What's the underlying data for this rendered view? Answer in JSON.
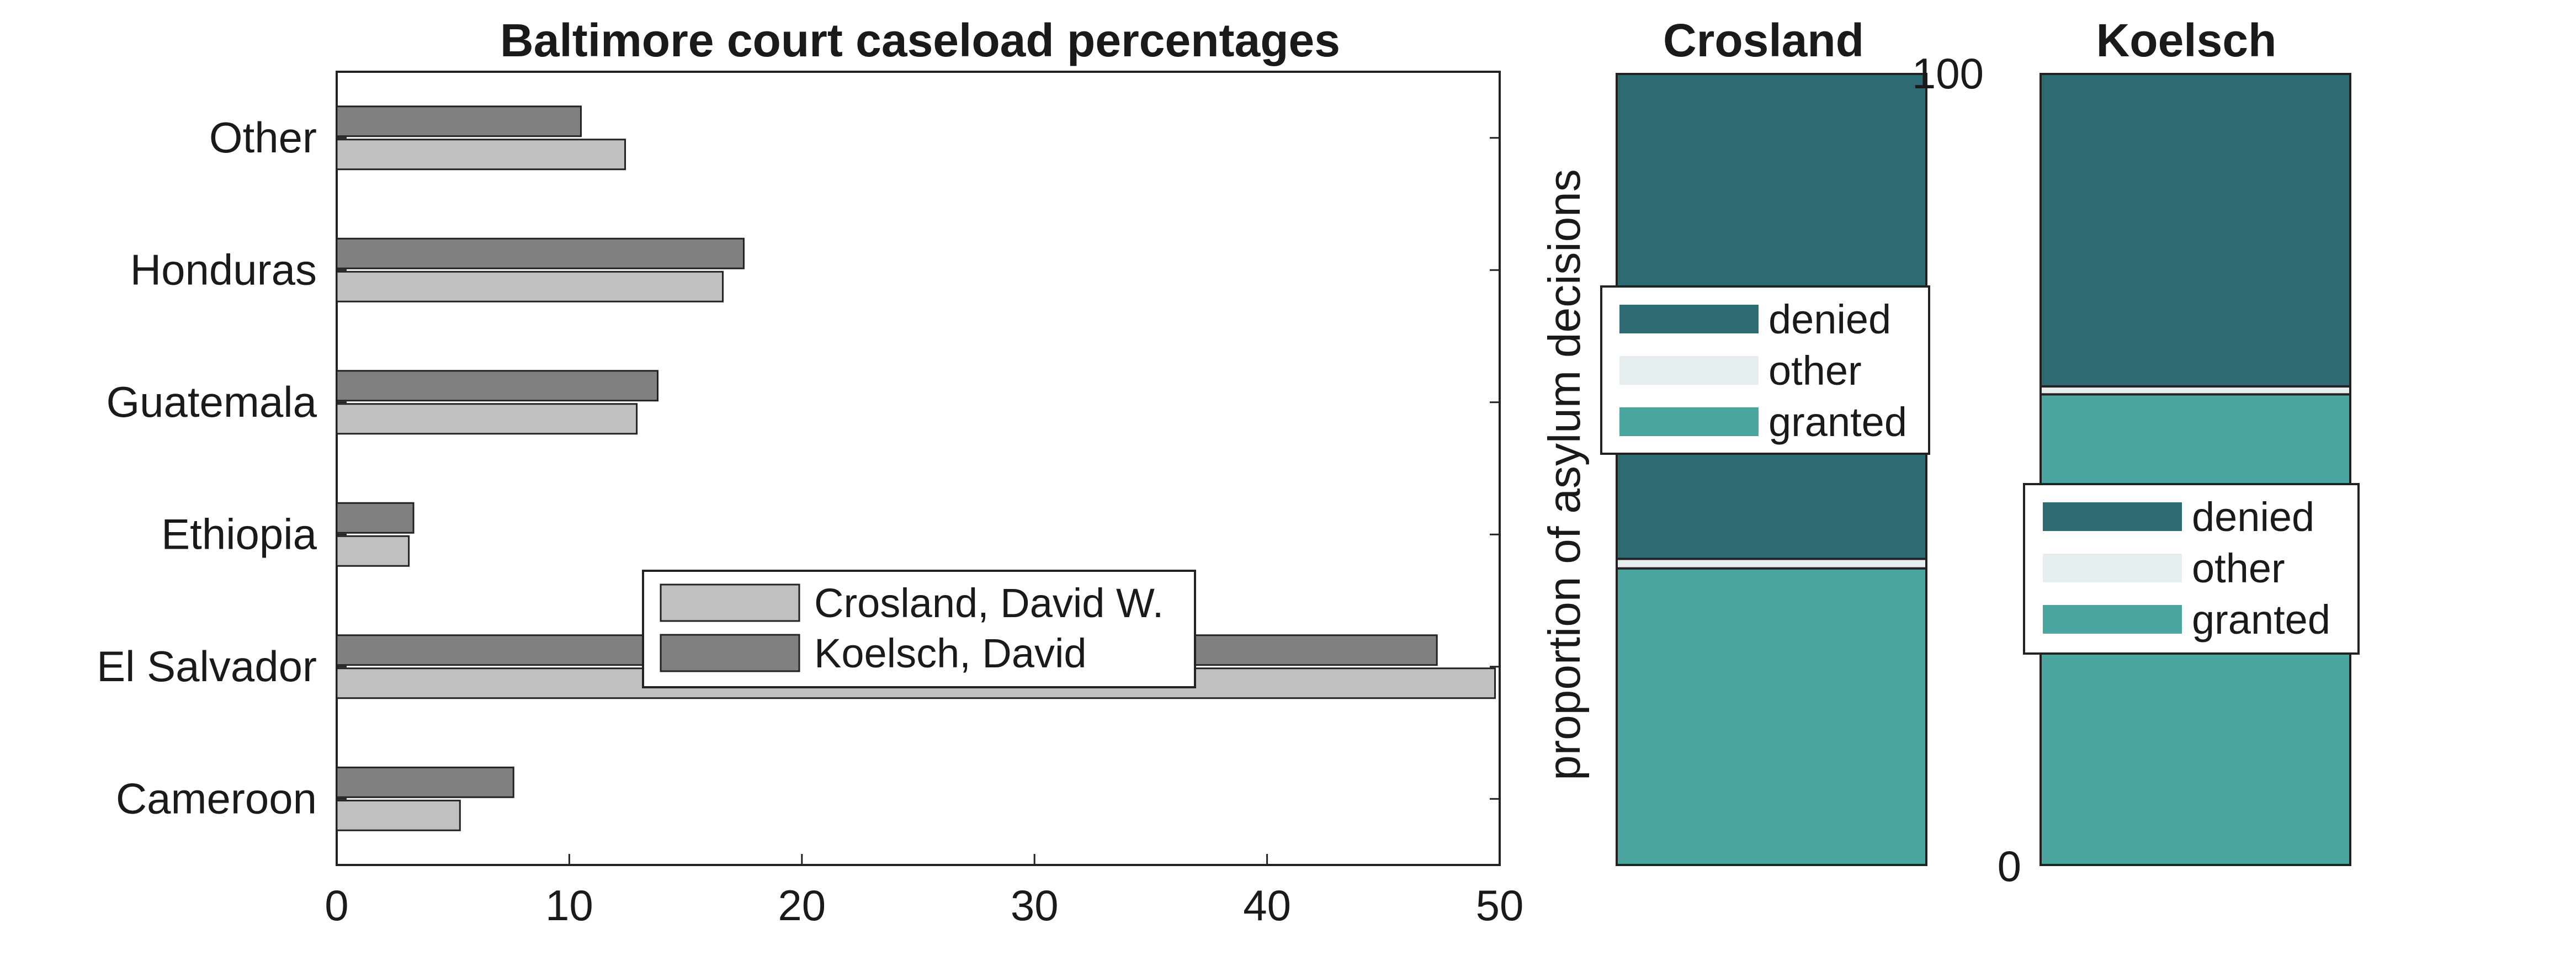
{
  "colors": {
    "crosland_bar": "#c0c0c0",
    "koelsch_bar": "#808080",
    "denied": "#2e6a71",
    "other": "#e6eef0",
    "granted": "#4aa69f"
  },
  "chart_data": [
    {
      "type": "bar",
      "orientation": "horizontal",
      "title": "Baltimore court caseload percentages",
      "categories": [
        "Cameroon",
        "El Salvador",
        "Ethiopia",
        "Guatemala",
        "Honduras",
        "Other"
      ],
      "series": [
        {
          "name": "Crosland, David W.",
          "values": [
            5.3,
            49.8,
            3.1,
            12.9,
            16.6,
            12.4
          ]
        },
        {
          "name": "Koelsch, David",
          "values": [
            7.6,
            47.3,
            3.3,
            13.8,
            17.5,
            10.5
          ]
        }
      ],
      "xlim": [
        0,
        50
      ],
      "xticks": [
        "0",
        "10",
        "20",
        "30",
        "40",
        "50"
      ],
      "legend_location": "bottom-center",
      "grid": false
    },
    {
      "type": "bar",
      "stacked": true,
      "title": "Crosland",
      "ylabel": "proportion of asylum decisions",
      "ylim": [
        0,
        100
      ],
      "segments": [
        {
          "name": "granted",
          "value": 37.5
        },
        {
          "name": "other",
          "value": 1.2
        },
        {
          "name": "denied",
          "value": 61.3
        }
      ],
      "legend": [
        "denied",
        "other",
        "granted"
      ],
      "legend_location": "center-left"
    },
    {
      "type": "bar",
      "stacked": true,
      "title": "Koelsch",
      "ylim": [
        0,
        100
      ],
      "yticks": [
        "0",
        "100"
      ],
      "segments": [
        {
          "name": "granted",
          "value": 59.5
        },
        {
          "name": "other",
          "value": 1.0
        },
        {
          "name": "denied",
          "value": 39.5
        }
      ],
      "legend": [
        "denied",
        "other",
        "granted"
      ],
      "legend_location": "center"
    }
  ]
}
